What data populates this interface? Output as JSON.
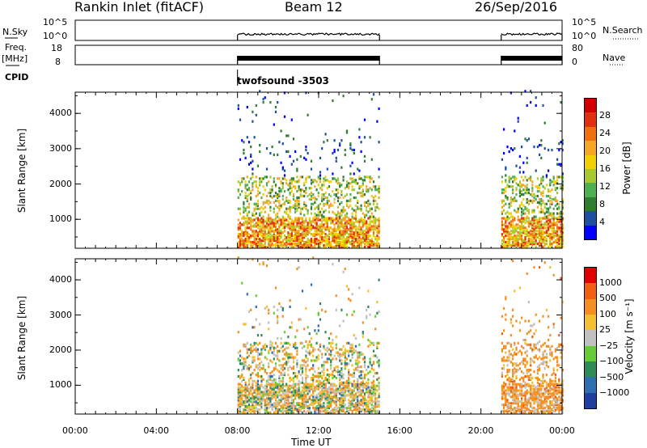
{
  "header": {
    "station": "Rankin Inlet (fitACF)",
    "beam": "Beam 12",
    "date": "26/Sep/2016"
  },
  "top_panels": {
    "nsky_label": "N.Sky",
    "nsky_ticks": [
      "10^5",
      "10^0"
    ],
    "nsearch_label": "N.Search",
    "nsearch_ticks": [
      "10^5",
      "10^0"
    ],
    "freq_label": "Freq.",
    "freq_unit": "[MHz]",
    "freq_ticks": [
      "18",
      "8"
    ],
    "nave_label": "Nave",
    "nave_ticks": [
      "80",
      "0"
    ],
    "cpid_label": "CPID",
    "cpid_value": "twofsound -3503"
  },
  "colors": {
    "power": [
      "#0000ff",
      "#1f4fa0",
      "#2e7d32",
      "#4caf50",
      "#a7c930",
      "#f0d000",
      "#f5a623",
      "#f07010",
      "#e03010",
      "#d00000"
    ],
    "velocity": [
      "#1f3f9f",
      "#2e6fb0",
      "#2e8b57",
      "#66cc33",
      "#c0c0c0",
      "#f5c030",
      "#f59020",
      "#f06010",
      "#e00000"
    ]
  },
  "chart_data": [
    {
      "type": "heatmap",
      "name": "Power",
      "ylabel": "Slant Range [km]",
      "yticks": [
        1000,
        2000,
        3000,
        4000
      ],
      "ylim": [
        180,
        4600
      ],
      "xlim_hours": [
        0,
        24
      ],
      "colorbar_label": "Power [dB]",
      "colorbar_ticks": [
        "28",
        "24",
        "20",
        "16",
        "12",
        "8",
        "4"
      ],
      "colorbar_range": [
        0,
        32
      ],
      "active_intervals_ut": [
        [
          "08:00",
          "15:00"
        ],
        [
          "21:00",
          "24:00"
        ]
      ]
    },
    {
      "type": "heatmap",
      "name": "Velocity",
      "ylabel": "Slant Range [km]",
      "yticks": [
        1000,
        2000,
        3000,
        4000
      ],
      "ylim": [
        180,
        4600
      ],
      "xlim_hours": [
        0,
        24
      ],
      "colorbar_label": "Velocity [m s⁻¹]",
      "colorbar_ticks": [
        "1000",
        "500",
        "100",
        "25",
        "−25",
        "−100",
        "−500",
        "−1000"
      ],
      "active_intervals_ut": [
        [
          "08:00",
          "15:00"
        ],
        [
          "21:00",
          "24:00"
        ]
      ]
    }
  ],
  "xaxis": {
    "ticks": [
      "00:00",
      "04:00",
      "08:00",
      "12:00",
      "16:00",
      "20:00",
      "00:00"
    ],
    "label": "Time UT"
  }
}
